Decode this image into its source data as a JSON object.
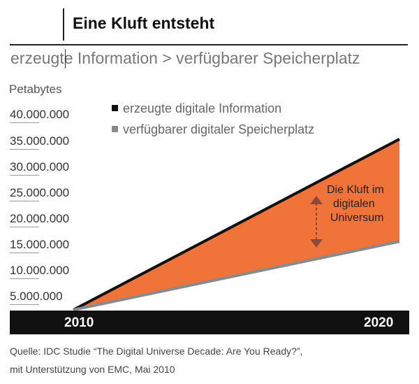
{
  "header": {
    "title": "Eine Kluft entsteht",
    "subtitle": "erzeugte Information > verfügbarer Speicherplatz"
  },
  "chart_data": {
    "type": "area",
    "title": "Eine Kluft entsteht",
    "subtitle": "erzeugte Information > verfügbarer Speicherplatz",
    "ylabel": "Petabytes",
    "xlabel": "",
    "x": [
      2010,
      2020
    ],
    "x_tick_labels": [
      "2010",
      "2020"
    ],
    "ylim": [
      0,
      40000000
    ],
    "y_tick_labels": [
      "5.000.000",
      "10.000.000",
      "15.000.000",
      "20.000.000",
      "25.000.000",
      "30.000.000",
      "35.000.000",
      "40.000.000"
    ],
    "y_ticks": [
      5000000,
      10000000,
      15000000,
      20000000,
      25000000,
      30000000,
      35000000,
      40000000
    ],
    "series": [
      {
        "name": "erzeugte digitale Information",
        "values": [
          0,
          35000000
        ],
        "color": "#111111"
      },
      {
        "name": "verfügbarer digitaler Speicherplatz",
        "values": [
          0,
          14000000
        ],
        "color": "#8a8a8a"
      }
    ],
    "gap_fill_color": "#f0743a",
    "legend_position": "top-left",
    "grid": false,
    "annotation": {
      "lines": [
        "Die Kluft im",
        "digitalen",
        "Universum"
      ],
      "arrow_color": "#8a4a3a"
    }
  },
  "source": {
    "line1": "Quelle: IDC Studie “The Digital Universe Decade: Are You Ready?”,",
    "line2": "mit Unterstützung von EMC, Mai 2010"
  }
}
